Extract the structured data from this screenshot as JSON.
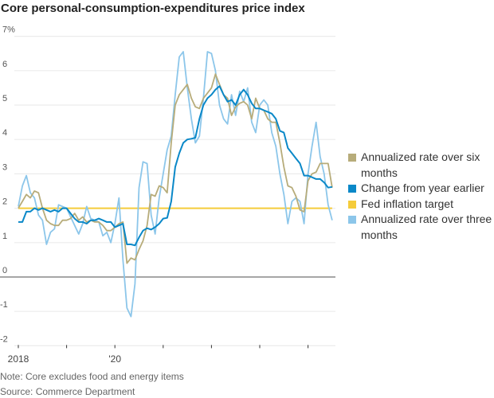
{
  "chart_data": {
    "type": "line",
    "title": "Core personal-consumption-expenditures price index",
    "xlabel": "",
    "ylabel": "",
    "x_start": "2018-01",
    "x_frequency": "monthly",
    "x_tick_labels": [
      "2018",
      "",
      "'20",
      "",
      "",
      "",
      ""
    ],
    "y_tick_labels": [
      "7%",
      "6",
      "5",
      "4",
      "3",
      "2",
      "1",
      "0",
      "-1",
      "-2"
    ],
    "y_ticks": [
      7,
      6,
      5,
      4,
      3,
      2,
      1,
      0,
      -1,
      -2
    ],
    "ylim": [
      -2,
      7
    ],
    "grid": true,
    "legend_position": "right",
    "series": [
      {
        "name": "Annualized rate over six months",
        "color": "#b7ac7a",
        "values": [
          2.0,
          2.2,
          2.4,
          2.3,
          2.5,
          2.45,
          2.0,
          1.65,
          1.55,
          1.5,
          1.5,
          1.65,
          1.65,
          1.7,
          1.85,
          1.65,
          1.75,
          1.6,
          1.65,
          1.6,
          1.6,
          1.5,
          1.35,
          1.35,
          1.45,
          1.55,
          1.6,
          0.4,
          0.55,
          0.5,
          0.8,
          1.05,
          1.5,
          2.4,
          2.35,
          2.65,
          2.6,
          2.45,
          3.9,
          5.0,
          5.3,
          5.45,
          5.6,
          5.2,
          4.95,
          4.9,
          5.2,
          5.35,
          5.5,
          5.9,
          5.6,
          5.3,
          5.2,
          4.7,
          4.95,
          5.05,
          5.1,
          5.0,
          4.6,
          5.2,
          4.9,
          4.85,
          4.6,
          4.5,
          4.5,
          3.9,
          3.2,
          2.65,
          2.6,
          2.35,
          1.95,
          1.9,
          2.8,
          3.0,
          3.05,
          3.3,
          3.3,
          3.3,
          2.6
        ]
      },
      {
        "name": "Change from year earlier",
        "color": "#0a88c8",
        "values": [
          1.6,
          1.6,
          1.9,
          1.9,
          2.0,
          1.95,
          2.0,
          1.95,
          1.9,
          1.95,
          1.9,
          2.0,
          2.0,
          1.85,
          1.7,
          1.6,
          1.6,
          1.55,
          1.65,
          1.65,
          1.7,
          1.65,
          1.6,
          1.6,
          1.45,
          1.5,
          1.55,
          0.95,
          0.95,
          0.92,
          1.15,
          1.35,
          1.42,
          1.38,
          1.45,
          1.55,
          1.7,
          1.72,
          2.2,
          3.2,
          3.6,
          3.9,
          4.0,
          4.02,
          4.05,
          4.6,
          5.0,
          5.2,
          5.3,
          5.45,
          5.55,
          5.3,
          5.1,
          5.15,
          5.0,
          5.3,
          5.45,
          5.3,
          5.05,
          4.9,
          4.9,
          4.85,
          4.8,
          4.75,
          4.6,
          4.25,
          4.2,
          3.75,
          3.6,
          3.45,
          3.3,
          2.95,
          2.95,
          2.9,
          2.85,
          2.85,
          2.75,
          2.6,
          2.62
        ]
      },
      {
        "name": "Fed inflation target",
        "color": "#f5cc3a",
        "values": [
          2,
          2
        ]
      },
      {
        "name": "Annualized rate over three months",
        "color": "#8cc6ea",
        "values": [
          2.05,
          2.65,
          2.95,
          2.45,
          2.3,
          1.8,
          1.65,
          0.95,
          1.3,
          1.4,
          2.1,
          2.05,
          2.0,
          1.75,
          1.5,
          1.25,
          1.55,
          2.05,
          1.7,
          1.65,
          1.6,
          1.2,
          1.3,
          1.0,
          1.55,
          2.3,
          0.5,
          -0.9,
          -1.15,
          -0.2,
          2.6,
          3.35,
          3.3,
          1.8,
          1.25,
          2.3,
          3.0,
          3.7,
          4.1,
          5.3,
          6.4,
          6.55,
          5.5,
          4.6,
          3.9,
          4.1,
          5.2,
          6.55,
          6.5,
          6.0,
          5.0,
          4.6,
          4.45,
          5.3,
          4.7,
          5.4,
          5.1,
          5.5,
          4.5,
          4.2,
          5.0,
          5.15,
          5.0,
          4.2,
          3.8,
          3.0,
          2.4,
          1.55,
          2.2,
          2.3,
          2.2,
          1.55,
          3.0,
          3.8,
          4.5,
          3.5,
          3.0,
          2.1,
          1.65
        ]
      }
    ],
    "legend": [
      {
        "label": "Annualized rate over six months",
        "color": "#b7ac7a"
      },
      {
        "label": "Change from year earlier",
        "color": "#0a88c8"
      },
      {
        "label": "Fed inflation target",
        "color": "#f5cc3a"
      },
      {
        "label": "Annualized rate over three months",
        "color": "#8cc6ea"
      }
    ]
  },
  "footer": {
    "note": "Note: Core excludes food and energy items",
    "source": "Source: Commerce Department"
  }
}
